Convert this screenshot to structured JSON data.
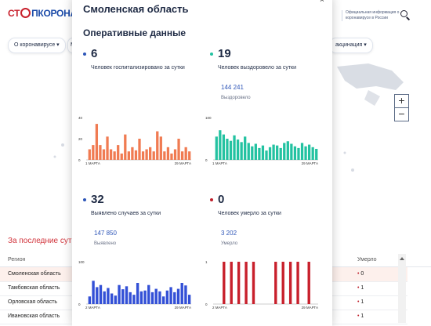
{
  "site": {
    "logo_part1": "СТ",
    "logo_part2": "ПКОРОНАВИ",
    "official_text": "Официальная информация о коронавирусе в России",
    "menu": [
      "О коронавирусе ▾",
      "М",
      "акцинация ▾"
    ],
    "left_title": "За последние сутк",
    "table": {
      "col_region": "Регион",
      "col_deaths": "Умерло",
      "rows": [
        {
          "region": "Смоленская область",
          "deaths": "0"
        },
        {
          "region": "Тамбовская область",
          "deaths": "1"
        },
        {
          "region": "Орловская область",
          "deaths": "1"
        },
        {
          "region": "Ивановская область",
          "deaths": "1"
        }
      ]
    },
    "zoom_in": "+",
    "zoom_out": "−"
  },
  "modal": {
    "title": "Смоленская область",
    "close": "×",
    "section_title": "Оперативные данные",
    "stats": [
      {
        "id": "hospitalized",
        "value": "6",
        "desc": "Человек госпитализировано за сутки",
        "color": "#2e56b8"
      },
      {
        "id": "recovered",
        "value": "19",
        "desc": "Человек выздоровело за сутки",
        "total": "144 241",
        "total_label": "Выздоровело",
        "color": "#23c2a1"
      },
      {
        "id": "cases",
        "value": "32",
        "desc": "Выявлено случаев за сутки",
        "total": "147 850",
        "total_label": "Выявлено",
        "color": "#2e56b8"
      },
      {
        "id": "deaths",
        "value": "0",
        "desc": "Человек умерло за сутки",
        "total": "3 202",
        "total_label": "Умерло",
        "color": "#c0202c"
      }
    ]
  },
  "chart_data": [
    {
      "type": "bar",
      "name": "hospitalized",
      "color": "#f07b52",
      "ylim": [
        0,
        40
      ],
      "yticks": [
        "40",
        "20",
        "0"
      ],
      "x_start_label": "1 МАРТА",
      "x_end_label": "29 МАРТА",
      "values": [
        10,
        14,
        34,
        14,
        10,
        22,
        10,
        8,
        14,
        6,
        24,
        8,
        12,
        9,
        20,
        8,
        10,
        12,
        8,
        27,
        22,
        8,
        12,
        6,
        10,
        20,
        8,
        12,
        8
      ]
    },
    {
      "type": "bar",
      "name": "recovered",
      "color": "#23c2a1",
      "ylim": [
        0,
        100
      ],
      "yticks": [
        "100",
        "",
        "0"
      ],
      "x_start_label": "1 МАРТА",
      "x_end_label": "29 МАРТА",
      "values": [
        55,
        70,
        60,
        50,
        45,
        58,
        48,
        42,
        55,
        40,
        32,
        38,
        28,
        34,
        22,
        30,
        36,
        34,
        28,
        40,
        44,
        38,
        32,
        28,
        40,
        32,
        36,
        30,
        26
      ]
    },
    {
      "type": "bar",
      "name": "cases",
      "color": "#3350d6",
      "ylim": [
        0,
        100
      ],
      "yticks": [
        "100",
        "",
        "0"
      ],
      "x_start_label": "2 МАРТА",
      "x_end_label": "29 МАРТА",
      "values": [
        18,
        55,
        40,
        45,
        30,
        38,
        25,
        20,
        45,
        35,
        42,
        28,
        22,
        50,
        30,
        32,
        45,
        28,
        36,
        30,
        18,
        32,
        40,
        28,
        36,
        50,
        44,
        22
      ]
    },
    {
      "type": "bar",
      "name": "deaths",
      "color": "#c8202c",
      "ylim": [
        0,
        1
      ],
      "yticks": [
        "1",
        "",
        "0"
      ],
      "x_start_label": "2 МАРТА",
      "x_end_label": "29 МАРТА",
      "values": [
        0,
        0,
        1,
        0,
        1,
        0,
        1,
        0,
        1,
        0,
        1,
        0,
        0,
        0,
        0,
        0,
        1,
        0,
        1,
        0,
        1,
        0,
        1,
        0,
        0,
        1,
        0,
        0
      ]
    }
  ]
}
